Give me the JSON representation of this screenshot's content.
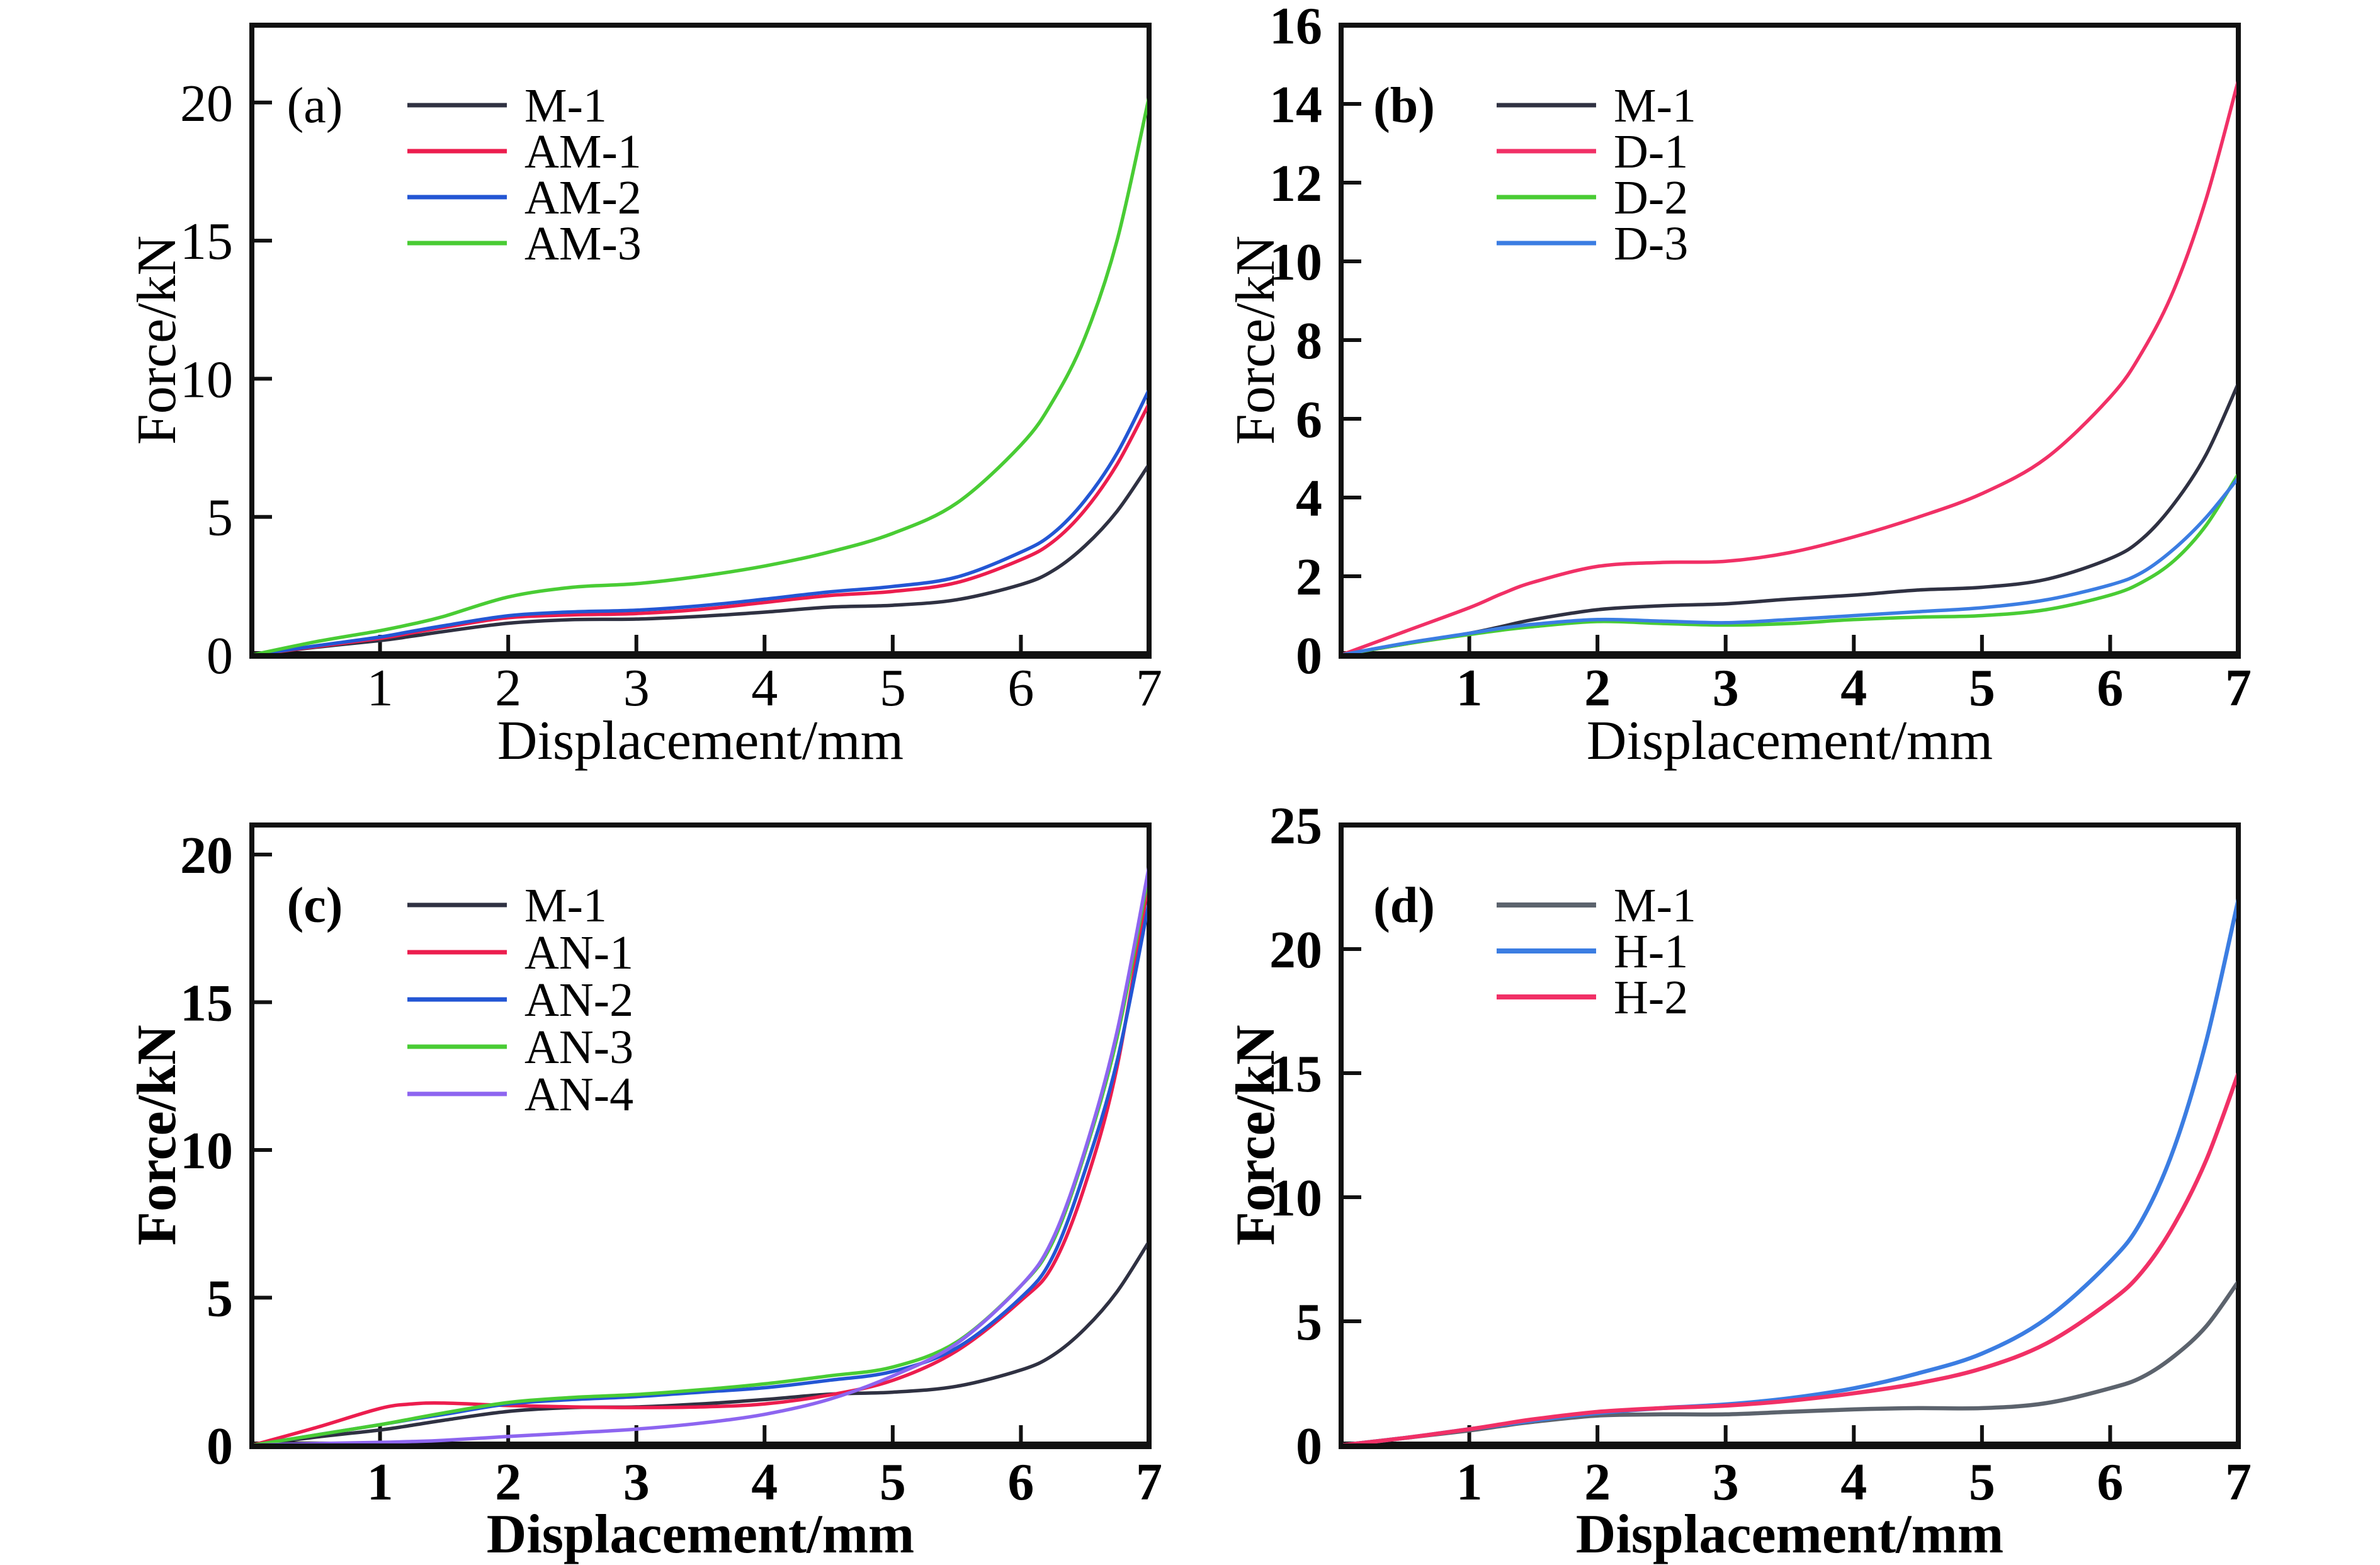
{
  "figure": {
    "type": "2x2-line-chart-grid",
    "background": "#ffffff",
    "axis_color": "#111111",
    "chart_data": [
      {
        "type": "line",
        "panel_label": "(a)",
        "xlabel": "Displacement/mm",
        "ylabel": "Force/kN",
        "xlim": [
          0,
          7
        ],
        "ylim": [
          0,
          22.8
        ],
        "xticks": [
          1,
          2,
          3,
          4,
          5,
          6,
          7
        ],
        "yticks": [
          0,
          5,
          10,
          15,
          20
        ],
        "grid": false,
        "legend_position": "upper-left-inside",
        "x": [
          0,
          0.5,
          1,
          1.25,
          1.5,
          2,
          2.5,
          3,
          3.5,
          4,
          4.5,
          5,
          5.5,
          6,
          6.25,
          6.5,
          6.75,
          7
        ],
        "series": [
          {
            "name": "M-1",
            "color": "#2f3142",
            "y": [
              0,
              0.28,
              0.52,
              0.68,
              0.85,
              1.15,
              1.28,
              1.3,
              1.4,
              1.55,
              1.73,
              1.8,
              2.0,
              2.55,
              3.05,
              3.95,
              5.2,
              6.9
            ]
          },
          {
            "name": "AM-1",
            "color": "#ec1d4e",
            "y": [
              0,
              0.3,
              0.6,
              0.8,
              1.0,
              1.35,
              1.45,
              1.5,
              1.65,
              1.9,
              2.15,
              2.3,
              2.62,
              3.45,
              4.1,
              5.25,
              6.9,
              9.1
            ]
          },
          {
            "name": "AM-2",
            "color": "#2356d4",
            "y": [
              0,
              0.33,
              0.65,
              0.86,
              1.06,
              1.42,
              1.56,
              1.62,
              1.78,
              2.02,
              2.28,
              2.48,
              2.82,
              3.72,
              4.4,
              5.6,
              7.3,
              9.6
            ]
          },
          {
            "name": "AM-3",
            "color": "#49cc34",
            "y": [
              0,
              0.48,
              0.88,
              1.12,
              1.4,
              2.1,
              2.45,
              2.58,
              2.85,
              3.22,
              3.72,
              4.4,
              5.5,
              7.6,
              9.2,
              11.5,
              15.0,
              20.2
            ]
          }
        ]
      },
      {
        "type": "line",
        "panel_label": "(b)",
        "xlabel": "Displacement/mm",
        "ylabel": "Force/kN",
        "xlim": [
          0,
          7
        ],
        "ylim": [
          0,
          16
        ],
        "xticks": [
          1,
          2,
          3,
          4,
          5,
          6,
          7
        ],
        "yticks": [
          0,
          2,
          4,
          6,
          8,
          10,
          12,
          14,
          16
        ],
        "grid": false,
        "legend_position": "upper-left-inside",
        "x": [
          0,
          0.5,
          1,
          1.25,
          1.5,
          2,
          2.5,
          3,
          3.5,
          4,
          4.5,
          5,
          5.5,
          6,
          6.25,
          6.5,
          6.75,
          7
        ],
        "series": [
          {
            "name": "M-1",
            "color": "#2f3142",
            "y": [
              0,
              0.28,
              0.55,
              0.72,
              0.9,
              1.15,
              1.25,
              1.3,
              1.42,
              1.52,
              1.65,
              1.72,
              1.92,
              2.45,
              2.95,
              3.85,
              5.1,
              6.9
            ]
          },
          {
            "name": "D-1",
            "color": "#f13066",
            "y": [
              0,
              0.6,
              1.2,
              1.55,
              1.85,
              2.25,
              2.35,
              2.38,
              2.6,
              3.0,
              3.5,
              4.1,
              5.0,
              6.55,
              7.7,
              9.3,
              11.6,
              14.6
            ]
          },
          {
            "name": "D-2",
            "color": "#49cc34",
            "y": [
              0,
              0.28,
              0.52,
              0.63,
              0.72,
              0.85,
              0.8,
              0.76,
              0.8,
              0.9,
              0.96,
              1.0,
              1.15,
              1.52,
              1.85,
              2.4,
              3.3,
              4.6
            ]
          },
          {
            "name": "D-3",
            "color": "#3b7de2",
            "y": [
              0,
              0.3,
              0.55,
              0.68,
              0.78,
              0.9,
              0.86,
              0.82,
              0.9,
              1.0,
              1.1,
              1.2,
              1.4,
              1.78,
              2.1,
              2.7,
              3.5,
              4.5
            ]
          }
        ]
      },
      {
        "type": "line",
        "panel_label": "(c)",
        "xlabel": "Displacement/mm",
        "ylabel": "Force/kN",
        "xlim": [
          0,
          7
        ],
        "ylim": [
          0,
          21
        ],
        "xticks": [
          1,
          2,
          3,
          4,
          5,
          6,
          7
        ],
        "yticks": [
          0,
          5,
          10,
          15,
          20
        ],
        "grid": false,
        "legend_position": "upper-left-inside",
        "x": [
          0,
          0.5,
          1,
          1.25,
          1.5,
          2,
          2.5,
          3,
          3.5,
          4,
          4.5,
          5,
          5.5,
          6,
          6.25,
          6.5,
          6.75,
          7
        ],
        "series": [
          {
            "name": "M-1",
            "color": "#2f3142",
            "y": [
              0,
              0.28,
              0.52,
              0.68,
              0.85,
              1.15,
              1.28,
              1.3,
              1.4,
              1.55,
              1.73,
              1.8,
              2.0,
              2.55,
              3.05,
              3.95,
              5.2,
              6.9
            ]
          },
          {
            "name": "AN-1",
            "color": "#ec1d4e",
            "y": [
              0,
              0.6,
              1.25,
              1.4,
              1.43,
              1.35,
              1.3,
              1.28,
              1.3,
              1.4,
              1.7,
              2.2,
              3.2,
              4.9,
              6.1,
              8.8,
              12.8,
              19.2
            ]
          },
          {
            "name": "AN-2",
            "color": "#2356d4",
            "y": [
              0,
              0.35,
              0.7,
              0.88,
              1.05,
              1.4,
              1.55,
              1.65,
              1.8,
              1.95,
              2.2,
              2.5,
              3.3,
              5.0,
              6.4,
              9.3,
              13.0,
              18.4
            ]
          },
          {
            "name": "AN-3",
            "color": "#49cc34",
            "y": [
              0,
              0.35,
              0.7,
              0.9,
              1.1,
              1.45,
              1.62,
              1.72,
              1.88,
              2.08,
              2.35,
              2.65,
              3.5,
              5.4,
              6.9,
              9.9,
              13.8,
              19.4
            ]
          },
          {
            "name": "AN-4",
            "color": "#8d65f0",
            "y": [
              0,
              0.06,
              0.1,
              0.13,
              0.17,
              0.3,
              0.42,
              0.55,
              0.75,
              1.05,
              1.55,
              2.35,
              3.45,
              5.4,
              7.0,
              10.0,
              14.0,
              19.6
            ]
          }
        ]
      },
      {
        "type": "line",
        "panel_label": "(d)",
        "xlabel": "Displacement/mm",
        "ylabel": "Force/kN",
        "xlim": [
          0,
          7
        ],
        "ylim": [
          0,
          25
        ],
        "xticks": [
          1,
          2,
          3,
          4,
          5,
          6,
          7
        ],
        "yticks": [
          0,
          5,
          10,
          15,
          20,
          25
        ],
        "grid": false,
        "legend_position": "upper-left-inside",
        "x": [
          0,
          0.5,
          1,
          1.25,
          1.5,
          2,
          2.5,
          3,
          3.5,
          4,
          4.5,
          5,
          5.5,
          6,
          6.25,
          6.5,
          6.75,
          7
        ],
        "series": [
          {
            "name": "M-1",
            "color": "#5c636d",
            "y": [
              0,
              0.3,
              0.6,
              0.78,
              0.95,
              1.2,
              1.25,
              1.25,
              1.35,
              1.45,
              1.5,
              1.5,
              1.7,
              2.3,
              2.75,
              3.6,
              4.8,
              6.6
            ]
          },
          {
            "name": "H-1",
            "color": "#3b7de2",
            "y": [
              0,
              0.3,
              0.65,
              0.82,
              1.0,
              1.3,
              1.5,
              1.65,
              1.9,
              2.3,
              2.9,
              3.7,
              5.1,
              7.4,
              9.1,
              12.0,
              16.3,
              22.0
            ]
          },
          {
            "name": "H-2",
            "color": "#f13066",
            "y": [
              0,
              0.3,
              0.65,
              0.85,
              1.05,
              1.35,
              1.5,
              1.6,
              1.8,
              2.1,
              2.5,
              3.1,
              4.1,
              5.8,
              7.0,
              8.9,
              11.5,
              15.0
            ]
          }
        ]
      }
    ]
  }
}
